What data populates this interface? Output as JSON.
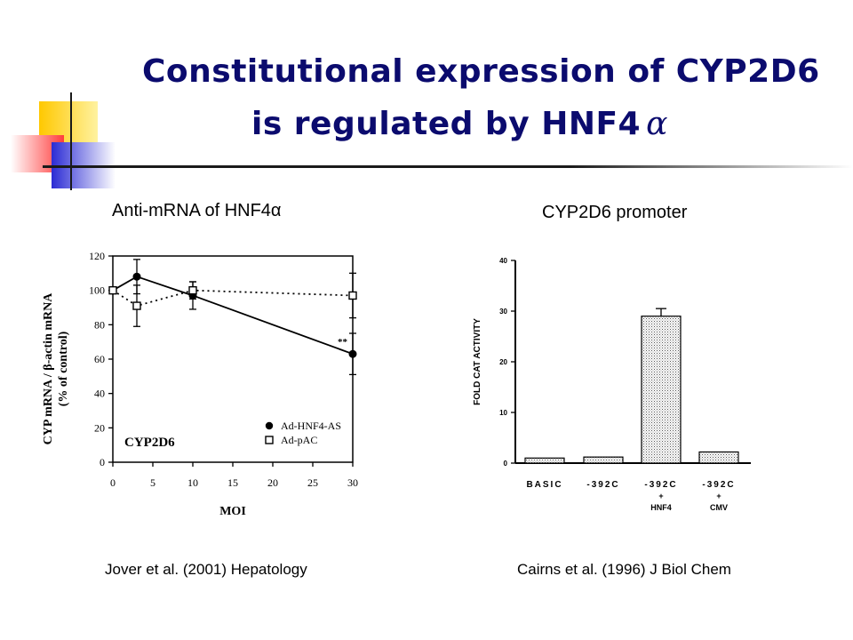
{
  "slide": {
    "title_line1": "Constitutional expression of CYP2D6",
    "title_line2": "is regulated by HNF4",
    "title_alpha": "α"
  },
  "left_panel": {
    "heading": "Anti-mRNA of HNF4α",
    "citation": "Jover et al. (2001) Hepatology"
  },
  "right_panel": {
    "heading": "CYP2D6 promoter",
    "citation": "Cairns et al. (1996) J Biol Chem"
  },
  "colors": {
    "title": "#0b0b6e",
    "deco_yellow": "#ffd200",
    "deco_red": "#ff3c3c",
    "deco_blue": "#2b2bd4"
  },
  "chart_data": [
    {
      "type": "line",
      "inner_label": "CYP2D6",
      "xlabel": "MOI",
      "ylabel_line1": "CYP mRNA / β-actin mRNA",
      "ylabel_line2": "(% of control)",
      "xlim": [
        0,
        30
      ],
      "ylim": [
        0,
        120
      ],
      "xticks": [
        0,
        5,
        10,
        15,
        20,
        25,
        30
      ],
      "yticks": [
        0,
        20,
        40,
        60,
        80,
        100,
        120
      ],
      "annotation": "**",
      "legend_position": "bottom-right",
      "series": [
        {
          "name": "Ad-HNF4-AS",
          "marker": "filled-circle",
          "line": "solid",
          "x": [
            0,
            3,
            10,
            30
          ],
          "y": [
            100,
            108,
            97,
            63
          ],
          "err": [
            0,
            10,
            8,
            12
          ]
        },
        {
          "name": "Ad-pAC",
          "marker": "open-square",
          "line": "dotted",
          "x": [
            0,
            3,
            10,
            30
          ],
          "y": [
            100,
            91,
            100,
            97
          ],
          "err": [
            0,
            12,
            5,
            13
          ]
        }
      ]
    },
    {
      "type": "bar",
      "ylabel": "FOLD CAT ACTIVITY",
      "ylim": [
        0,
        40
      ],
      "yticks": [
        0,
        10,
        20,
        30,
        40
      ],
      "categories": [
        {
          "line1": "BASIC",
          "line2": "",
          "line3": ""
        },
        {
          "line1": "-392C",
          "line2": "",
          "line3": ""
        },
        {
          "line1": "-392C",
          "line2": "+",
          "line3": "HNF4"
        },
        {
          "line1": "-392C",
          "line2": "+",
          "line3": "CMV"
        }
      ],
      "values": [
        1,
        1.2,
        29,
        2.2
      ],
      "errors": [
        0,
        0,
        1.5,
        0
      ]
    }
  ]
}
